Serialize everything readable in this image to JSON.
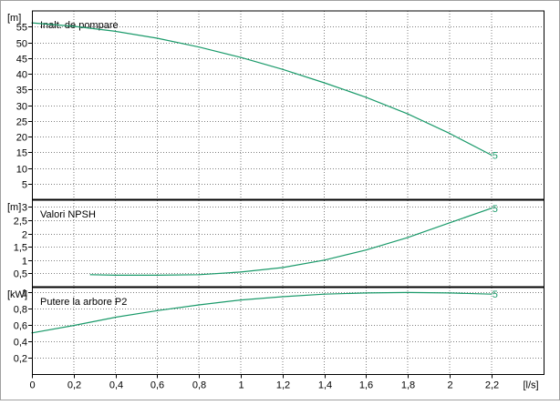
{
  "x_axis": {
    "unit_label": "[l/s]",
    "ticks": [
      0,
      0.2,
      0.4,
      0.6,
      0.8,
      1,
      1.2,
      1.4,
      1.6,
      1.8,
      2,
      2.2
    ],
    "tick_labels": [
      "0",
      "0,2",
      "0,4",
      "0,6",
      "0,8",
      "1",
      "1,2",
      "1,4",
      "1,6",
      "1,8",
      "2",
      "2,2"
    ],
    "range": [
      0,
      2.45
    ]
  },
  "colors": {
    "curve": "#1a9a6a",
    "grid": "#7f7f7f",
    "axis": "#000000",
    "background": "#ffffff"
  },
  "chart_data": [
    {
      "type": "line",
      "title": "Inalt. de pompare",
      "ylabel": "[m]",
      "ylim": [
        0,
        60
      ],
      "y_ticks": [
        5,
        10,
        15,
        20,
        25,
        30,
        35,
        40,
        45,
        50,
        55
      ],
      "y_tick_labels": [
        "5",
        "10",
        "15",
        "20",
        "25",
        "30",
        "35",
        "40",
        "45",
        "50",
        "55"
      ],
      "grid": true,
      "series": [
        {
          "curve_label": "5",
          "x": [
            0,
            0.2,
            0.4,
            0.6,
            0.8,
            1.0,
            1.2,
            1.4,
            1.6,
            1.8,
            2.0,
            2.2
          ],
          "y": [
            56.2,
            55.1,
            53.5,
            51.3,
            48.5,
            45.2,
            41.4,
            37.1,
            32.5,
            27.2,
            21.0,
            14.1
          ]
        }
      ]
    },
    {
      "type": "line",
      "title": "Valori NPSH",
      "ylabel": "[m]",
      "ylim": [
        0,
        3.25
      ],
      "y_ticks": [
        0.5,
        1,
        1.5,
        2,
        2.5,
        3
      ],
      "y_tick_labels": [
        "0,5",
        "1",
        "1,5",
        "2",
        "2,5",
        "3"
      ],
      "grid": true,
      "series": [
        {
          "curve_label": "5",
          "x": [
            0.28,
            0.4,
            0.6,
            0.8,
            1.0,
            1.2,
            1.4,
            1.6,
            1.8,
            2.0,
            2.2
          ],
          "y": [
            0.45,
            0.43,
            0.43,
            0.45,
            0.55,
            0.72,
            1.0,
            1.38,
            1.85,
            2.4,
            2.95
          ]
        }
      ]
    },
    {
      "type": "line",
      "title": "Putere la arbore P2",
      "ylabel": "[kW]",
      "ylim": [
        0,
        1.05
      ],
      "y_ticks": [
        0.2,
        0.4,
        0.6,
        0.8,
        1
      ],
      "y_tick_labels": [
        "0,2",
        "0,4",
        "0,6",
        "0,8",
        "1"
      ],
      "grid": true,
      "series": [
        {
          "curve_label": "5",
          "x": [
            0,
            0.2,
            0.4,
            0.6,
            0.8,
            1.0,
            1.2,
            1.4,
            1.6,
            1.8,
            2.0,
            2.2
          ],
          "y": [
            0.5,
            0.59,
            0.69,
            0.77,
            0.84,
            0.9,
            0.94,
            0.97,
            0.985,
            0.99,
            0.985,
            0.97
          ]
        }
      ]
    }
  ]
}
